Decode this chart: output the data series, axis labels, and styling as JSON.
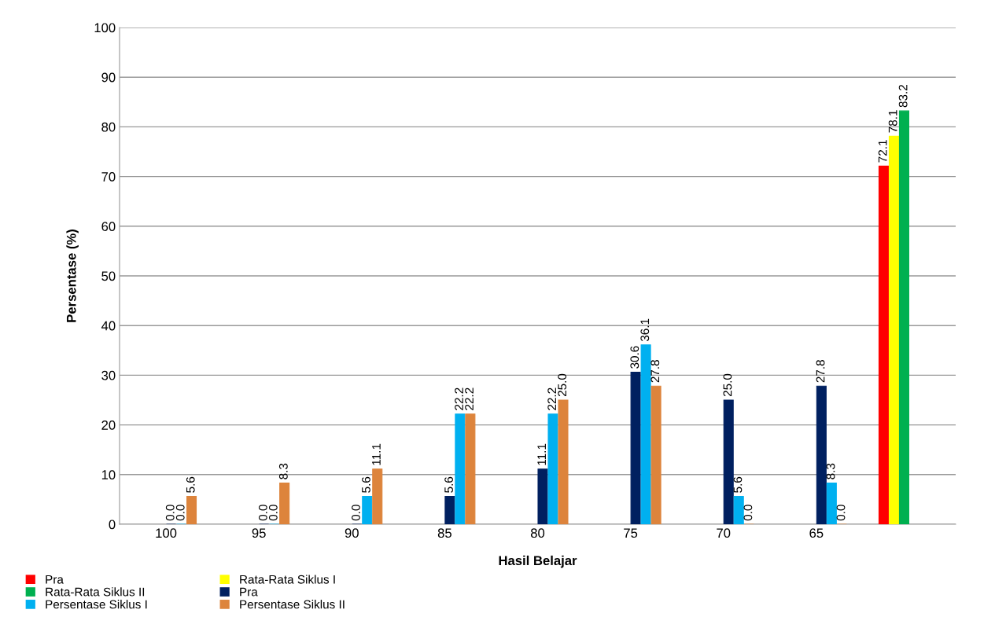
{
  "chart_data": {
    "type": "bar",
    "xlabel": "Hasil Belajar",
    "ylabel": "Persentase (%)",
    "categories": [
      "100",
      "95",
      "90",
      "85",
      "80",
      "75",
      "70",
      "65",
      null
    ],
    "series": [
      {
        "name": "Pra",
        "color": "#ff0000",
        "values": [
          null,
          null,
          null,
          null,
          null,
          null,
          null,
          null,
          72.1
        ],
        "value_labels": [
          null,
          null,
          null,
          null,
          null,
          null,
          null,
          null,
          "72.1"
        ]
      },
      {
        "name": "Rata-Rata Siklus I",
        "color": "#ffff00",
        "values": [
          null,
          null,
          null,
          null,
          null,
          null,
          null,
          null,
          78.1
        ],
        "value_labels": [
          null,
          null,
          null,
          null,
          null,
          null,
          null,
          null,
          "78.1"
        ]
      },
      {
        "name": "Rata-Rata Siklus II",
        "color": "#00b050",
        "values": [
          null,
          null,
          null,
          null,
          null,
          null,
          null,
          null,
          83.2
        ],
        "value_labels": [
          null,
          null,
          null,
          null,
          null,
          null,
          null,
          null,
          "83.2"
        ]
      },
      {
        "name": "Pra",
        "color": "#002060",
        "values": [
          0,
          0,
          0,
          5.6,
          11.1,
          30.6,
          25.0,
          27.8,
          null
        ],
        "value_labels": [
          "0.0",
          "0.0",
          "0.0",
          "5.6",
          "11.1",
          "30.6",
          "25.0",
          "27.8",
          null
        ]
      },
      {
        "name": "Persentase Siklus I",
        "color": "#00b0f0",
        "values": [
          0,
          0,
          5.6,
          22.2,
          22.2,
          36.1,
          5.6,
          8.3,
          null
        ],
        "value_labels": [
          "0.0",
          "0.0",
          "5.6",
          "22.2",
          "22.2",
          "36.1",
          "5.6",
          "8.3",
          null
        ]
      },
      {
        "name": "Persentase Siklus II",
        "color": "#dd843c",
        "values": [
          5.6,
          8.3,
          11.1,
          22.2,
          25.0,
          27.8,
          0,
          0,
          null
        ],
        "value_labels": [
          "5.6",
          "8.3",
          "11.1",
          "22.2",
          "25.0",
          "27.8",
          "0.0",
          "0.0",
          null
        ]
      }
    ],
    "ylim": [
      0,
      100
    ],
    "yticks": [
      0,
      10,
      20,
      30,
      40,
      50,
      60,
      70,
      80,
      90,
      100
    ],
    "grid": "y",
    "legend": "bottom left"
  }
}
